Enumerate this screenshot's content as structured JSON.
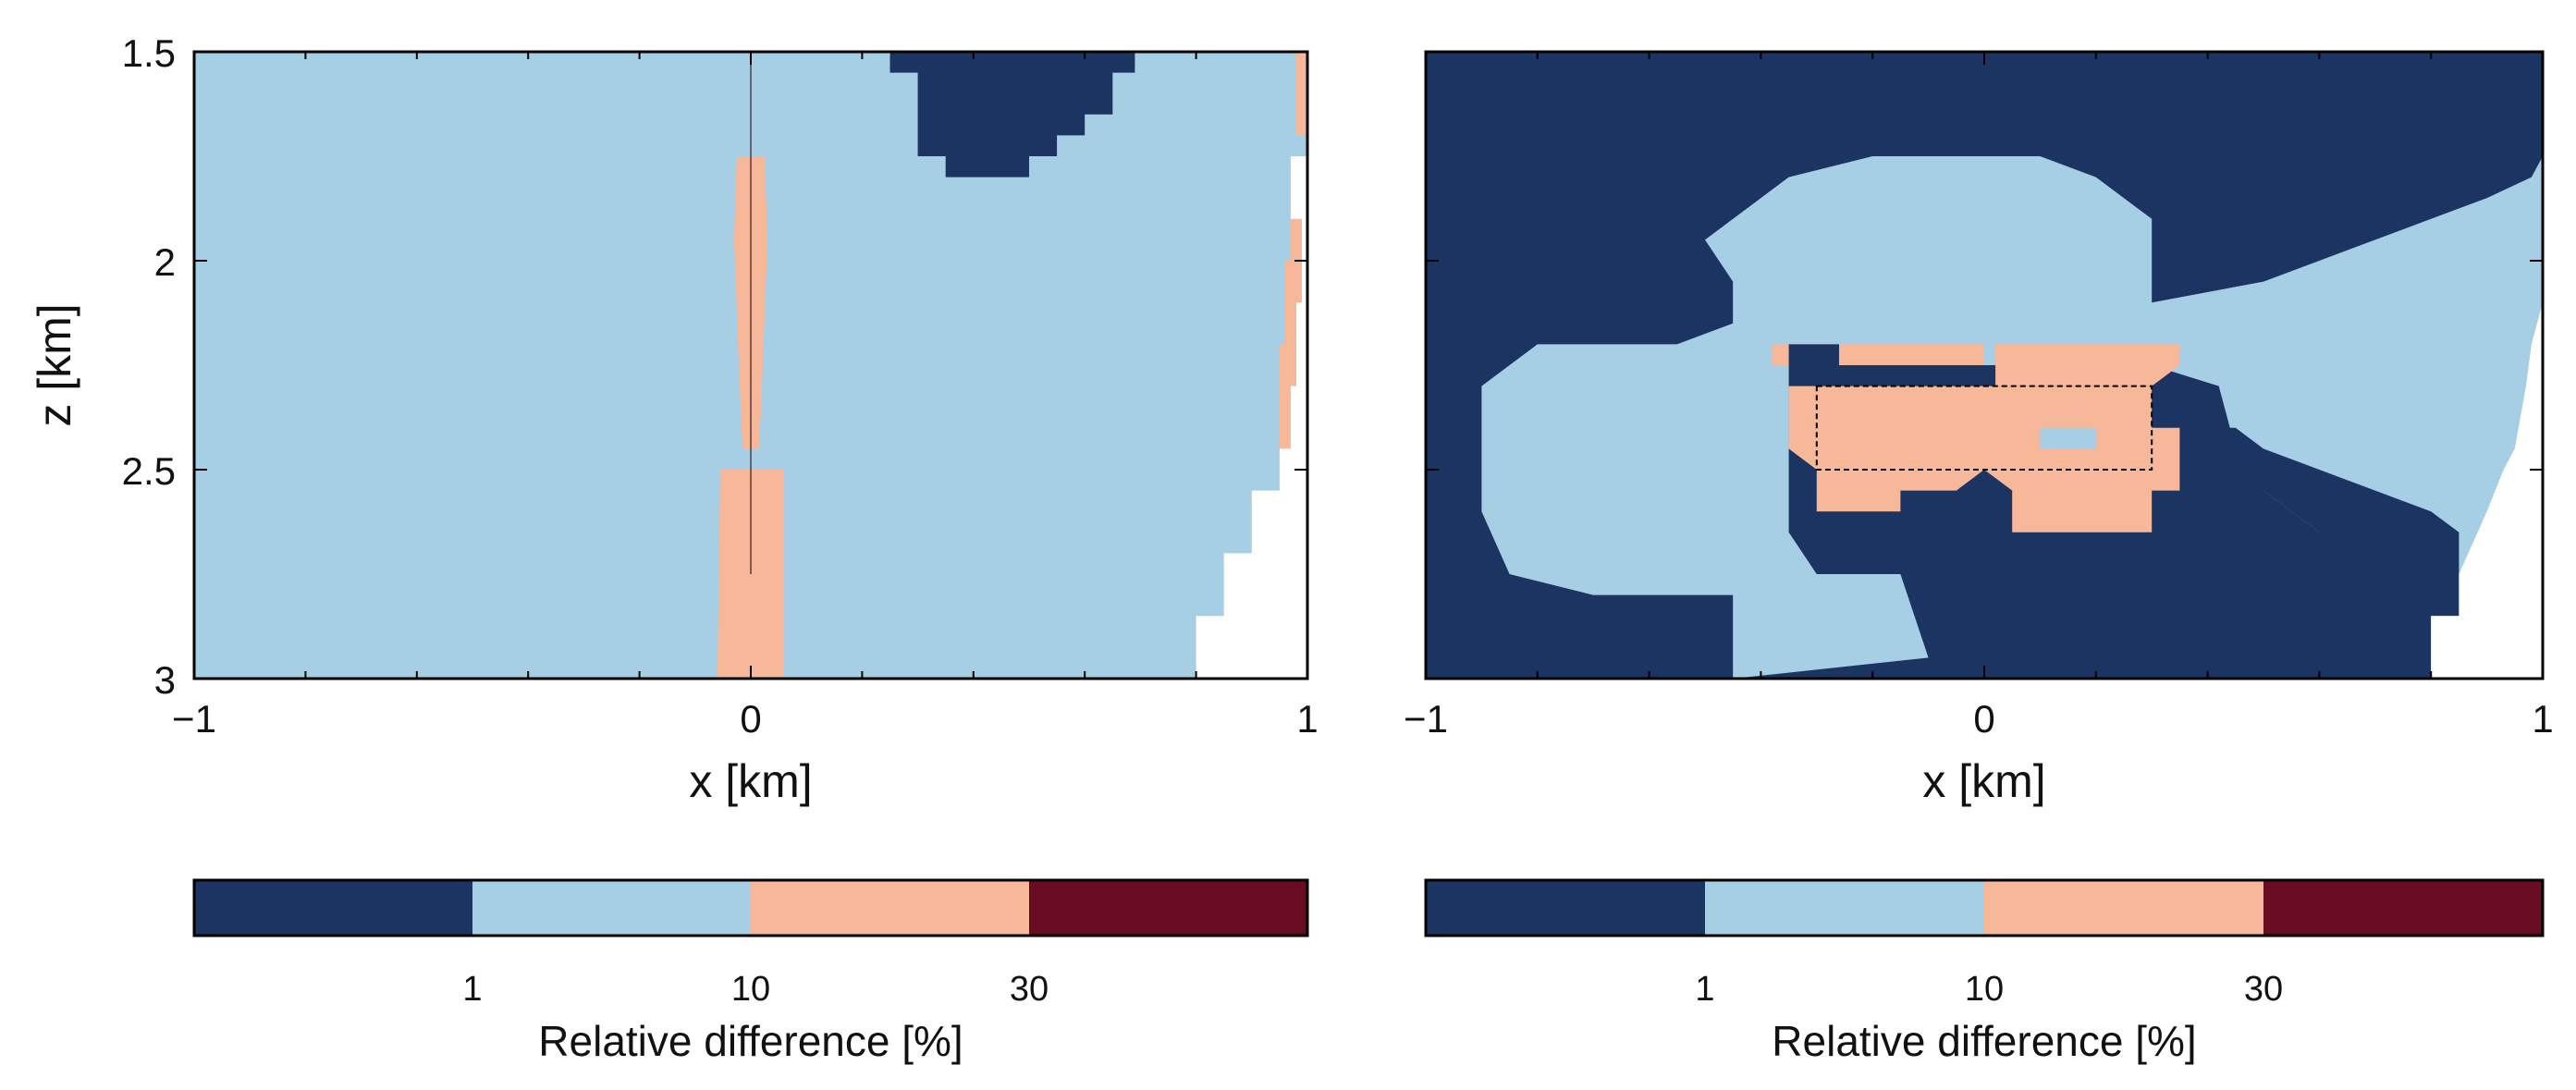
{
  "chart_data": [
    {
      "type": "heatmap",
      "panel": "left",
      "xlabel": "x [km]",
      "ylabel": "z [km]",
      "xlim": [
        -1,
        1
      ],
      "ylim": [
        3,
        1.5
      ],
      "y_inverted": true,
      "xticks": [
        -1,
        0,
        1
      ],
      "xtick_labels": [
        "−1",
        "0",
        "1"
      ],
      "yticks": [
        1.5,
        2,
        2.5,
        3
      ],
      "ytick_labels": [
        "1.5",
        "2",
        "2.5",
        "3"
      ],
      "background_class": "1-10",
      "regions": [
        {
          "class": "<1",
          "polygon": [
            [
              0.25,
              1.5
            ],
            [
              0.69,
              1.5
            ],
            [
              0.69,
              1.55
            ],
            [
              0.65,
              1.55
            ],
            [
              0.65,
              1.65
            ],
            [
              0.6,
              1.65
            ],
            [
              0.6,
              1.7
            ],
            [
              0.55,
              1.7
            ],
            [
              0.55,
              1.75
            ],
            [
              0.5,
              1.75
            ],
            [
              0.5,
              1.8
            ],
            [
              0.35,
              1.8
            ],
            [
              0.35,
              1.75
            ],
            [
              0.3,
              1.75
            ],
            [
              0.3,
              1.55
            ],
            [
              0.25,
              1.55
            ]
          ]
        },
        {
          "class": "10-30",
          "polygon": [
            [
              -0.055,
              2.5
            ],
            [
              0.06,
              2.5
            ],
            [
              0.06,
              3.0
            ],
            [
              -0.06,
              3.0
            ]
          ]
        },
        {
          "class": "10-30",
          "polygon": [
            [
              -0.025,
              1.75
            ],
            [
              0.025,
              1.75
            ],
            [
              0.03,
              1.95
            ],
            [
              0.02,
              2.3
            ],
            [
              0.015,
              2.45
            ],
            [
              -0.015,
              2.45
            ],
            [
              -0.02,
              2.3
            ],
            [
              -0.03,
              1.95
            ]
          ]
        },
        {
          "class": "10-30",
          "polygon": [
            [
              0.98,
              1.5
            ],
            [
              1.0,
              1.5
            ],
            [
              1.0,
              1.7
            ],
            [
              0.98,
              1.7
            ]
          ]
        },
        {
          "class": "10-30",
          "polygon": [
            [
              0.97,
              1.9
            ],
            [
              0.99,
              1.9
            ],
            [
              0.99,
              2.1
            ],
            [
              0.98,
              2.1
            ],
            [
              0.98,
              2.3
            ],
            [
              0.97,
              2.3
            ],
            [
              0.97,
              2.45
            ],
            [
              0.95,
              2.45
            ],
            [
              0.95,
              2.2
            ],
            [
              0.96,
              2.2
            ],
            [
              0.96,
              2.0
            ],
            [
              0.97,
              2.0
            ]
          ]
        }
      ],
      "blank_region": [
        [
          1.0,
          1.75
        ],
        [
          1.0,
          3.0
        ],
        [
          0.8,
          3.0
        ],
        [
          0.8,
          2.85
        ],
        [
          0.85,
          2.85
        ],
        [
          0.85,
          2.7
        ],
        [
          0.9,
          2.7
        ],
        [
          0.9,
          2.55
        ],
        [
          0.95,
          2.55
        ],
        [
          0.95,
          2.45
        ],
        [
          0.97,
          2.45
        ],
        [
          0.97,
          2.3
        ],
        [
          0.98,
          2.3
        ],
        [
          0.98,
          2.1
        ],
        [
          0.99,
          2.1
        ],
        [
          0.99,
          1.9
        ],
        [
          0.97,
          1.9
        ],
        [
          0.97,
          1.75
        ]
      ],
      "well_trace": {
        "x": 0,
        "z_top": 1.5,
        "z_bottom": 2.75
      }
    },
    {
      "type": "heatmap",
      "panel": "right",
      "xlabel": "x [km]",
      "ylabel": "",
      "xlim": [
        -1,
        1
      ],
      "ylim": [
        3,
        1.5
      ],
      "y_inverted": true,
      "xticks": [
        -1,
        0,
        1
      ],
      "xtick_labels": [
        "−1",
        "0",
        "1"
      ],
      "yticks": [
        1.5,
        2,
        2.5,
        3
      ],
      "ytick_labels": [],
      "background_class": "<1",
      "regions": [
        {
          "class": "1-10",
          "polygon": [
            [
              -0.9,
              2.3
            ],
            [
              -0.8,
              2.2
            ],
            [
              -0.55,
              2.2
            ],
            [
              -0.45,
              2.15
            ],
            [
              -0.45,
              2.05
            ],
            [
              -0.5,
              1.95
            ],
            [
              -0.4,
              1.85
            ],
            [
              -0.35,
              1.8
            ],
            [
              -0.2,
              1.75
            ],
            [
              0.1,
              1.75
            ],
            [
              0.2,
              1.8
            ],
            [
              0.25,
              1.85
            ],
            [
              0.3,
              1.9
            ],
            [
              0.3,
              2.1
            ],
            [
              0.5,
              2.05
            ],
            [
              0.6,
              2.0
            ],
            [
              0.7,
              1.95
            ],
            [
              0.8,
              1.9
            ],
            [
              0.9,
              1.85
            ],
            [
              0.98,
              1.8
            ],
            [
              1.0,
              1.75
            ],
            [
              1.0,
              3.0
            ],
            [
              0.8,
              3.0
            ],
            [
              0.8,
              2.85
            ],
            [
              0.85,
              2.85
            ],
            [
              0.85,
              2.8
            ],
            [
              0.75,
              2.75
            ],
            [
              0.6,
              2.65
            ],
            [
              0.5,
              2.55
            ],
            [
              0.45,
              2.45
            ],
            [
              0.42,
              2.3
            ],
            [
              0.3,
              2.25
            ],
            [
              0.25,
              2.25
            ],
            [
              -0.05,
              2.25
            ],
            [
              -0.3,
              2.25
            ],
            [
              -0.35,
              2.25
            ],
            [
              -0.35,
              2.65
            ],
            [
              -0.3,
              2.75
            ],
            [
              -0.15,
              2.75
            ],
            [
              -0.1,
              2.95
            ],
            [
              -0.45,
              3.0
            ],
            [
              -0.45,
              2.8
            ],
            [
              -0.6,
              2.8
            ],
            [
              -0.7,
              2.8
            ],
            [
              -0.85,
              2.75
            ],
            [
              -0.9,
              2.6
            ]
          ]
        },
        {
          "class": "10-30",
          "polygon": [
            [
              -0.38,
              2.2
            ],
            [
              0.0,
              2.2
            ],
            [
              0.0,
              2.25
            ],
            [
              -0.38,
              2.25
            ]
          ]
        },
        {
          "class": "10-30",
          "polygon": [
            [
              0.02,
              2.2
            ],
            [
              0.35,
              2.2
            ],
            [
              0.35,
              2.25
            ],
            [
              0.3,
              2.3
            ],
            [
              0.02,
              2.3
            ]
          ]
        },
        {
          "class": "10-30",
          "polygon": [
            [
              -0.35,
              2.3
            ],
            [
              0.3,
              2.3
            ],
            [
              0.3,
              2.4
            ],
            [
              0.35,
              2.4
            ],
            [
              0.35,
              2.55
            ],
            [
              0.3,
              2.55
            ],
            [
              0.3,
              2.65
            ],
            [
              0.05,
              2.65
            ],
            [
              0.05,
              2.55
            ],
            [
              0.0,
              2.5
            ],
            [
              -0.05,
              2.55
            ],
            [
              -0.15,
              2.55
            ],
            [
              -0.15,
              2.6
            ],
            [
              -0.3,
              2.6
            ],
            [
              -0.3,
              2.5
            ],
            [
              -0.35,
              2.45
            ]
          ]
        },
        {
          "class": "<1",
          "polygon": [
            [
              -0.35,
              2.2
            ],
            [
              -0.26,
              2.2
            ],
            [
              -0.26,
              2.25
            ],
            [
              -0.35,
              2.25
            ]
          ]
        },
        {
          "class": "<1",
          "polygon": [
            [
              0.4,
              2.4
            ],
            [
              0.45,
              2.4
            ],
            [
              0.5,
              2.45
            ],
            [
              0.6,
              2.5
            ],
            [
              0.7,
              2.55
            ],
            [
              0.8,
              2.6
            ],
            [
              0.85,
              2.65
            ],
            [
              0.85,
              2.8
            ],
            [
              0.75,
              2.8
            ],
            [
              0.7,
              2.75
            ],
            [
              0.65,
              2.7
            ],
            [
              0.6,
              2.65
            ],
            [
              0.5,
              2.55
            ],
            [
              0.45,
              2.5
            ],
            [
              0.4,
              2.45
            ]
          ]
        },
        {
          "class": "1-10",
          "polygon": [
            [
              0.1,
              2.4
            ],
            [
              0.2,
              2.4
            ],
            [
              0.2,
              2.45
            ],
            [
              0.1,
              2.45
            ]
          ]
        }
      ],
      "blank_region": [
        [
          1.0,
          2.1
        ],
        [
          1.0,
          3.0
        ],
        [
          0.8,
          3.0
        ],
        [
          0.8,
          2.85
        ],
        [
          0.85,
          2.85
        ],
        [
          0.85,
          2.75
        ],
        [
          0.9,
          2.6
        ],
        [
          0.93,
          2.5
        ],
        [
          0.95,
          2.45
        ],
        [
          0.97,
          2.3
        ],
        [
          0.98,
          2.2
        ]
      ],
      "box": {
        "x": [
          -0.3,
          0.3
        ],
        "z": [
          2.3,
          2.5
        ]
      }
    }
  ],
  "colorbar": {
    "label": "Relative difference [%]",
    "tick_labels": [
      "1",
      "10",
      "30"
    ],
    "classes": [
      "<1",
      "1-10",
      "10-30",
      ">30"
    ],
    "colors": {
      "<1": "#1b3461",
      "1-10": "#a6cfe5",
      "10-30": "#f7b89a",
      ">30": "#690b22"
    }
  }
}
